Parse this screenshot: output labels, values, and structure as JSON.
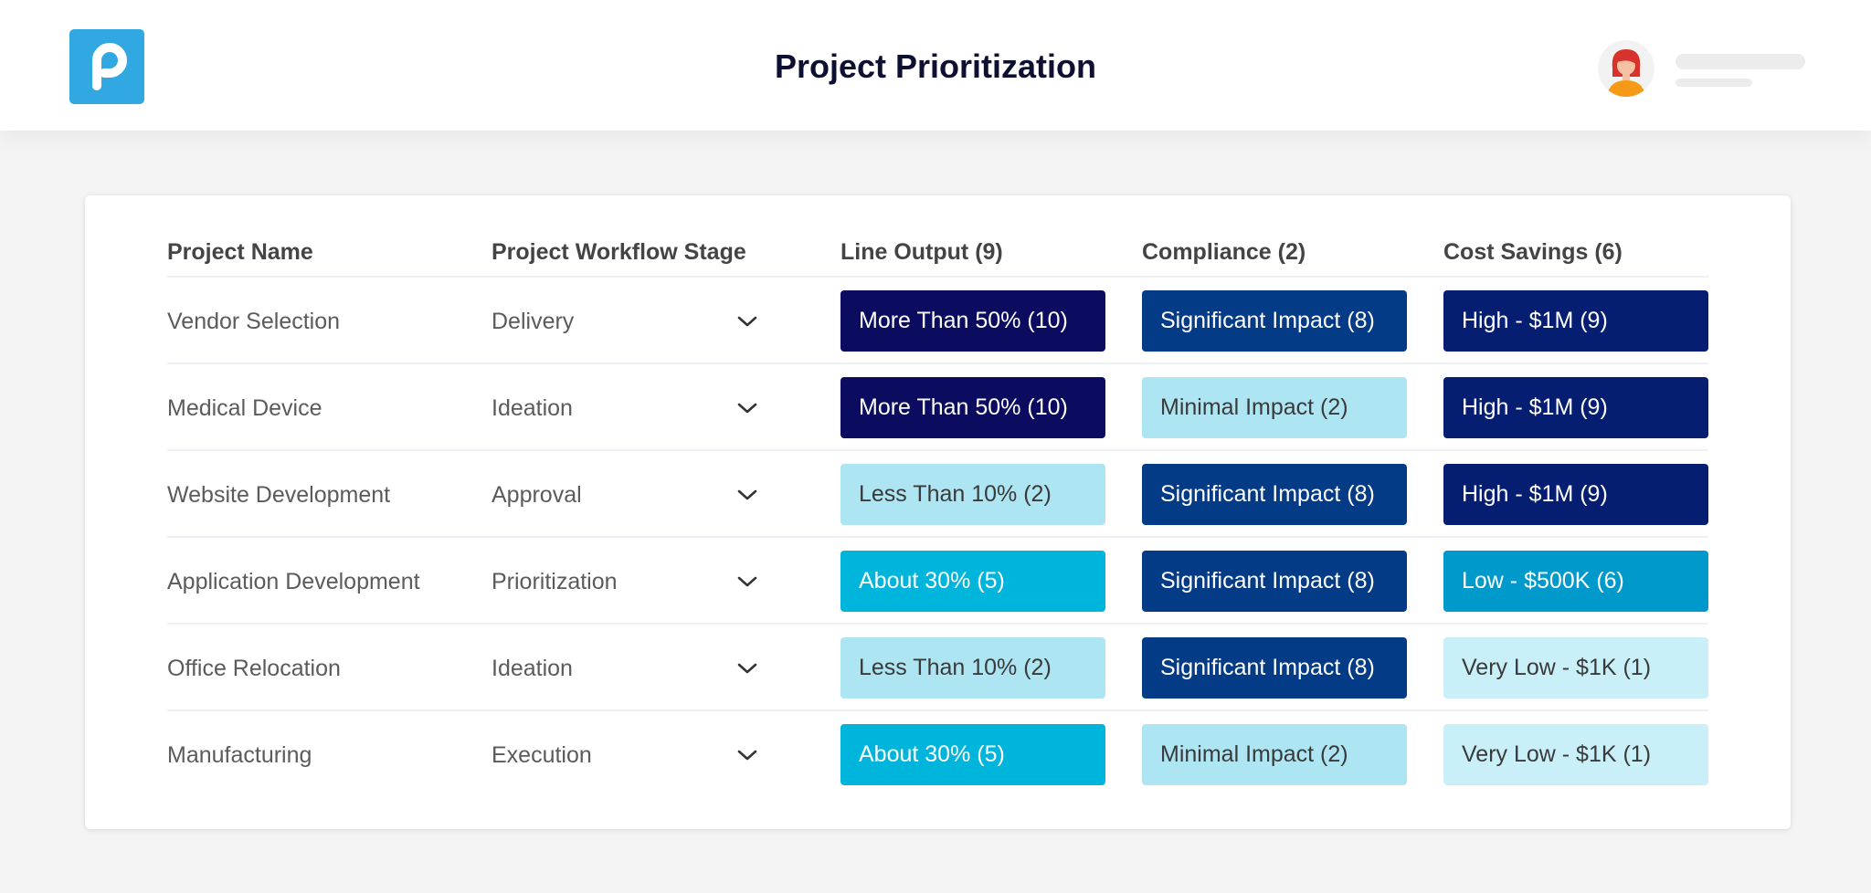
{
  "app": {
    "title": "Project Prioritization",
    "logo_icon": "p-logo-icon",
    "brand_color": "#32a8e2"
  },
  "user": {
    "avatar_icon": "user-avatar-icon"
  },
  "table": {
    "headers": [
      "Project Name",
      "Project Workflow Stage",
      "Line Output (9)",
      "Compliance (2)",
      "Cost Savings (6)"
    ],
    "dropdown_icon": "chevron-down-icon",
    "rows": [
      {
        "name": "Vendor Selection",
        "stage": "Delivery",
        "line_output": {
          "label": "More Than 50% (10)",
          "bg": "#0b0c5f",
          "fg": "#ffffff"
        },
        "compliance": {
          "label": "Significant Impact (8)",
          "bg": "#033b86",
          "fg": "#ffffff"
        },
        "cost_savings": {
          "label": "High - $1M (9)",
          "bg": "#061e71",
          "fg": "#ffffff"
        }
      },
      {
        "name": "Medical Device",
        "stage": "Ideation",
        "line_output": {
          "label": "More Than 50% (10)",
          "bg": "#0b0c5f",
          "fg": "#ffffff"
        },
        "compliance": {
          "label": "Minimal Impact (2)",
          "bg": "#ade5f3",
          "fg": "#3a3a3a"
        },
        "cost_savings": {
          "label": "High - $1M (9)",
          "bg": "#061e71",
          "fg": "#ffffff"
        }
      },
      {
        "name": "Website Development",
        "stage": "Approval",
        "line_output": {
          "label": "Less Than 10% (2)",
          "bg": "#ade5f3",
          "fg": "#3a3a3a"
        },
        "compliance": {
          "label": "Significant Impact (8)",
          "bg": "#033b86",
          "fg": "#ffffff"
        },
        "cost_savings": {
          "label": "High - $1M (9)",
          "bg": "#061e71",
          "fg": "#ffffff"
        }
      },
      {
        "name": "Application Development",
        "stage": "Prioritization",
        "line_output": {
          "label": "About 30% (5)",
          "bg": "#00b5dc",
          "fg": "#ffffff"
        },
        "compliance": {
          "label": "Significant Impact (8)",
          "bg": "#033b86",
          "fg": "#ffffff"
        },
        "cost_savings": {
          "label": "Low - $500K (6)",
          "bg": "#0099cc",
          "fg": "#ffffff"
        }
      },
      {
        "name": "Office Relocation",
        "stage": "Ideation",
        "line_output": {
          "label": "Less Than 10% (2)",
          "bg": "#ade5f3",
          "fg": "#3a3a3a"
        },
        "compliance": {
          "label": "Significant Impact (8)",
          "bg": "#033b86",
          "fg": "#ffffff"
        },
        "cost_savings": {
          "label": "Very Low - $1K (1)",
          "bg": "#c9f0f8",
          "fg": "#3a3a3a"
        }
      },
      {
        "name": "Manufacturing",
        "stage": "Execution",
        "line_output": {
          "label": "About 30% (5)",
          "bg": "#00b5dc",
          "fg": "#ffffff"
        },
        "compliance": {
          "label": "Minimal Impact (2)",
          "bg": "#ade5f3",
          "fg": "#3a3a3a"
        },
        "cost_savings": {
          "label": "Very Low - $1K (1)",
          "bg": "#c9f0f8",
          "fg": "#3a3a3a"
        }
      }
    ]
  }
}
